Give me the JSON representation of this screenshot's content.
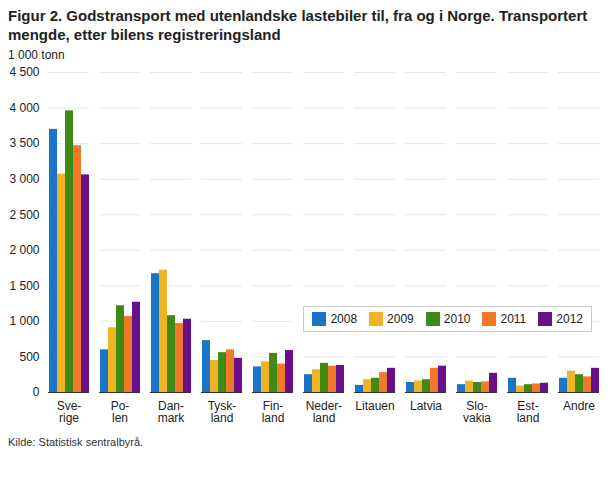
{
  "chart_data": {
    "type": "bar",
    "title": "Figur 2. Godstransport med utenlandske lastebiler til, fra og i Norge. Transportert mengde, etter bilens registreringsland",
    "subtitle": "1 000 tonn",
    "caption": "Kilde: Statistisk sentralbyrå.",
    "categories": [
      "Sve-\nrige",
      "Po-\nlen",
      "Dan-\nmark",
      "Tysk-\nland",
      "Fin-\nland",
      "Neder-\nland",
      "Litauen",
      "Latvia",
      "Slo-\nvakia",
      "Est-\nland",
      "Andre"
    ],
    "series": [
      {
        "name": "2008",
        "color": "#1a74c8",
        "values": [
          3700,
          600,
          1670,
          730,
          360,
          250,
          100,
          140,
          110,
          200,
          200
        ]
      },
      {
        "name": "2009",
        "color": "#f0b323",
        "values": [
          3070,
          910,
          1720,
          450,
          430,
          320,
          180,
          160,
          160,
          90,
          300
        ]
      },
      {
        "name": "2010",
        "color": "#3f8a14",
        "values": [
          3960,
          1220,
          1080,
          560,
          550,
          410,
          200,
          180,
          140,
          110,
          250
        ]
      },
      {
        "name": "2011",
        "color": "#f07a2a",
        "values": [
          3470,
          1070,
          970,
          600,
          400,
          370,
          280,
          340,
          150,
          120,
          220
        ]
      },
      {
        "name": "2012",
        "color": "#6b0e8a",
        "values": [
          3060,
          1270,
          1030,
          480,
          590,
          380,
          340,
          370,
          270,
          130,
          340
        ]
      }
    ],
    "ylim": [
      0,
      4500
    ],
    "yticks": [
      0,
      500,
      {
        "value": 1000,
        "label": "1 000"
      },
      {
        "value": 1500,
        "label": "1 500"
      },
      {
        "value": 2000,
        "label": "2 000"
      },
      {
        "value": 2500,
        "label": "2 500"
      },
      {
        "value": 3000,
        "label": "3 000"
      },
      {
        "value": 3500,
        "label": "3 500"
      },
      {
        "value": 4000,
        "label": "4 000"
      },
      {
        "value": 4500,
        "label": "4 500"
      }
    ],
    "grid": true,
    "legend": "right"
  }
}
